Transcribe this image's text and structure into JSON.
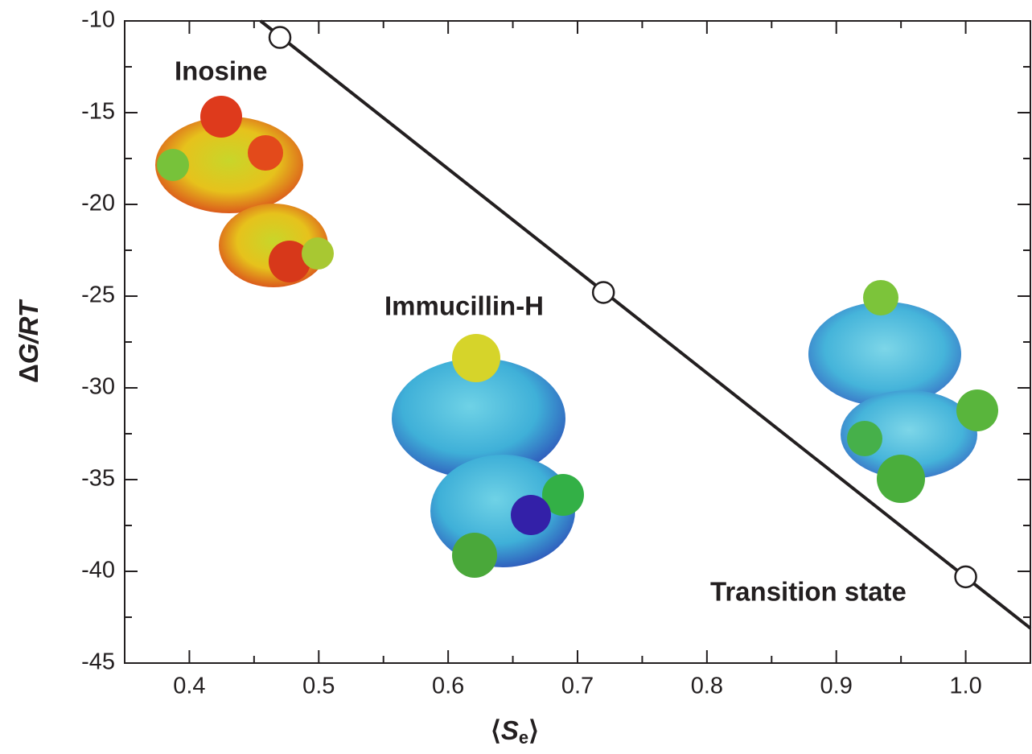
{
  "chart_data": {
    "type": "scatter",
    "x": [
      0.47,
      0.72,
      1.0
    ],
    "series": [
      {
        "values": [
          -10.9,
          -24.8,
          -40.3
        ],
        "color": "#231f20"
      }
    ],
    "fit_line": {
      "x": [
        0.455,
        1.05
      ],
      "y": [
        -10,
        -43.1
      ],
      "color": "#231f20"
    },
    "xlim": [
      0.35,
      1.05
    ],
    "ylim": [
      -45,
      -10
    ],
    "xticks": [
      0.4,
      0.5,
      0.6,
      0.7,
      0.8,
      0.9,
      {
        "value": 1,
        "label": "1.0"
      }
    ],
    "yticks": [
      -45,
      -40,
      -35,
      -30,
      -25,
      -20,
      -15,
      -10
    ],
    "xminorticks": [
      0.45,
      0.55,
      0.65,
      0.75,
      0.85,
      0.95
    ],
    "yminorticks": [
      -42.5,
      -37.5,
      -32.5,
      -27.5,
      -22.5,
      -17.5,
      -12.5
    ],
    "x_label": [
      "⟨",
      "S",
      "e",
      "⟩"
    ],
    "y_label": [
      "Δ",
      "G/RT"
    ],
    "annotations": [
      "Inosine",
      "Immucillin-H",
      "Transition state"
    ]
  }
}
